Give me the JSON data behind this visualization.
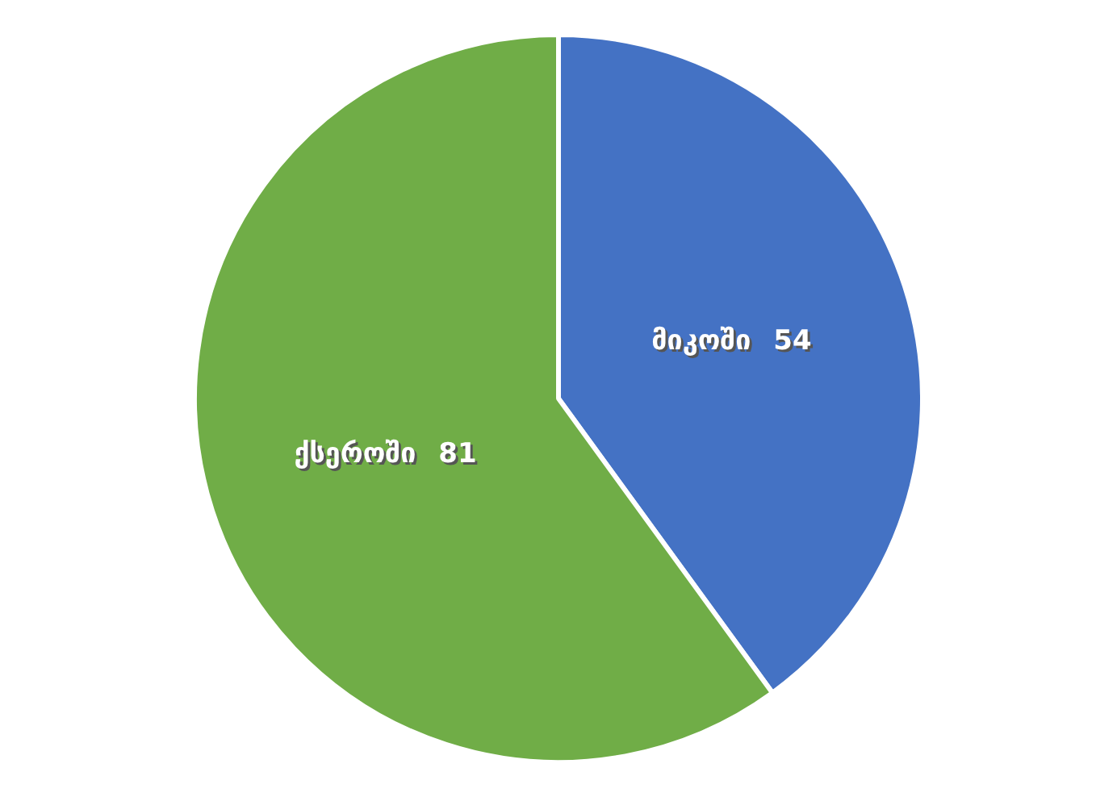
{
  "chart_data": {
    "type": "pie",
    "categories": [
      "მიკოში",
      "ქსეროში"
    ],
    "values": [
      54,
      81
    ],
    "colors": [
      "#4472c4",
      "#70ad47"
    ],
    "data_labels": true,
    "legend": false
  }
}
